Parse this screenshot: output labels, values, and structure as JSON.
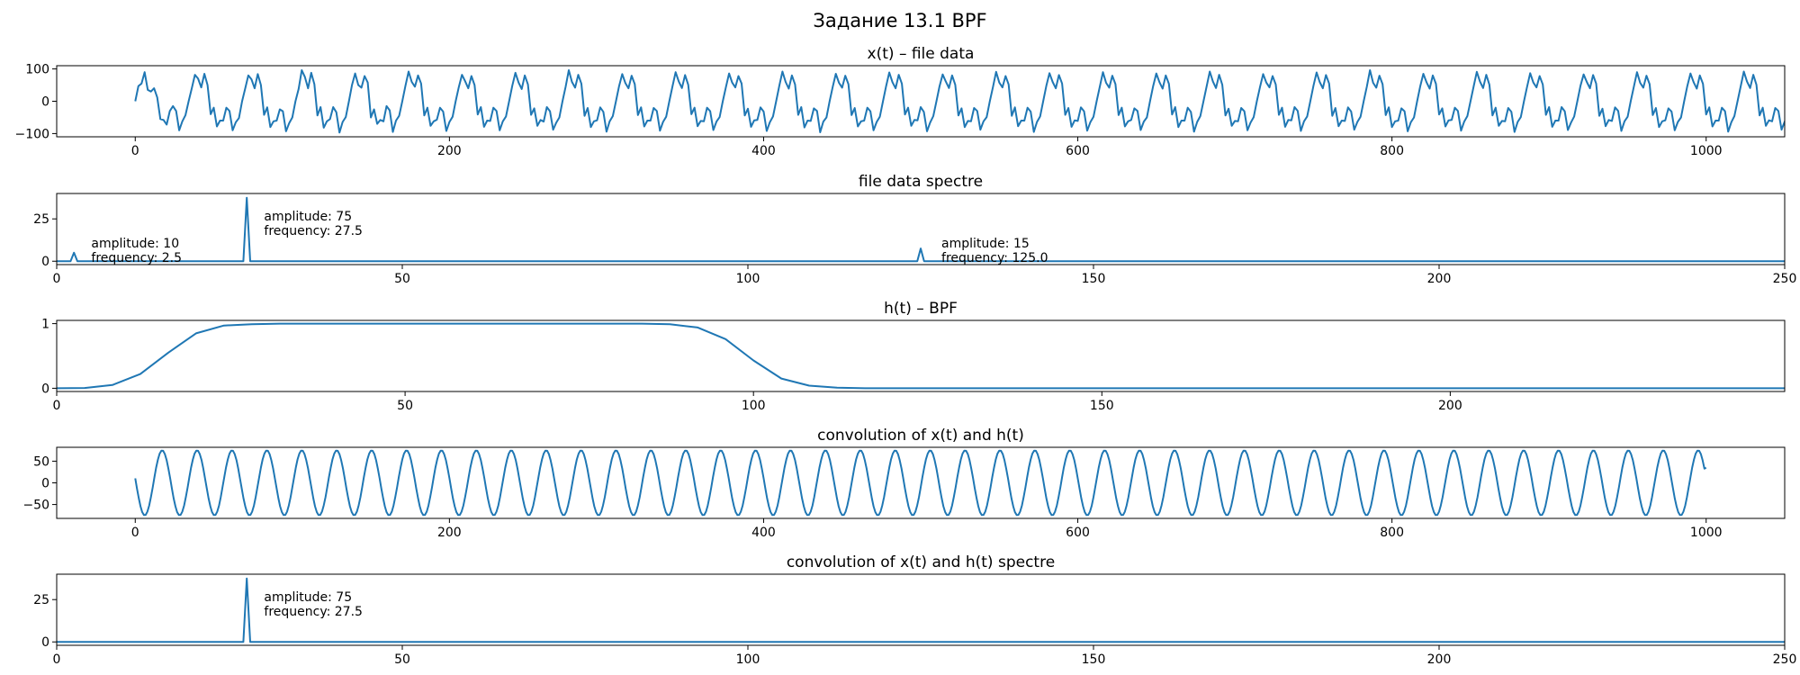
{
  "figure_title": "Задание 13.1 BPF",
  "chart_data": [
    {
      "type": "line",
      "title": "x(t) – file data",
      "xlabel": "",
      "ylabel": "",
      "xlim": [
        -50,
        1050
      ],
      "ylim": [
        -110,
        110
      ],
      "xticks": [
        0,
        200,
        400,
        600,
        800,
        1000
      ],
      "yticks": [
        -100,
        0,
        100
      ],
      "series": [
        {
          "color": "#1f77b4",
          "x_start": 0,
          "x_step": 2,
          "y": [
            0,
            47,
            55,
            90,
            35,
            30,
            40,
            12,
            -55,
            -58,
            -72,
            -30,
            -15,
            -30,
            -90,
            -62,
            -43,
            0,
            40,
            82,
            70,
            43,
            85,
            50,
            -40,
            -20,
            -78,
            -60,
            -60,
            -20,
            -30,
            -90,
            -65,
            -52,
            0,
            40,
            80,
            68,
            40,
            84,
            50,
            -42,
            -19,
            -80,
            -62,
            -60,
            -25,
            -31,
            -93,
            -68,
            -50,
            0,
            38,
            96,
            75,
            40,
            88,
            53,
            -44,
            -18,
            -82,
            -62,
            -55,
            -18,
            -34,
            -97,
            -64,
            -49,
            0,
            50,
            86,
            50,
            42,
            78,
            58,
            -50,
            -25,
            -70,
            -58,
            -62,
            -15,
            -28,
            -95,
            -60,
            -45,
            0,
            48,
            92,
            60,
            45,
            80,
            55,
            -44,
            -20,
            -76,
            -62,
            -57,
            -20,
            -32,
            -92,
            -64,
            -48,
            0,
            44,
            82,
            62,
            40,
            78,
            50,
            -41,
            -18,
            -79,
            -60,
            -61,
            -20,
            -30,
            -90,
            -62,
            -47,
            0,
            48,
            88,
            58,
            38,
            80,
            52,
            -42,
            -22,
            -76,
            -58,
            -63,
            -18,
            -31,
            -88,
            -66,
            -50,
            0,
            45,
            96,
            60,
            42,
            82,
            54,
            -45,
            -21,
            -80,
            -62,
            -59,
            -19,
            -33,
            -94,
            -62,
            -46,
            0,
            47,
            84,
            56,
            40,
            79,
            53,
            -43,
            -19,
            -78,
            -60,
            -60,
            -21,
            -30,
            -91,
            -64,
            -48,
            0,
            46,
            90,
            61,
            41,
            81,
            51,
            -40,
            -20,
            -77,
            -61,
            -62,
            -20,
            -31,
            -89,
            -63,
            -49,
            0,
            44,
            86,
            58,
            43,
            78,
            55,
            -44,
            -23,
            -79,
            -59,
            -58,
            -19,
            -32,
            -92,
            -65,
            -47,
            0,
            48,
            92,
            60,
            39,
            80,
            52,
            -42,
            -18,
            -81,
            -60,
            -61,
            -22,
            -30,
            -96,
            -63,
            -50,
            0,
            45,
            85,
            57,
            42,
            79,
            53,
            -43,
            -21,
            -78,
            -62,
            -60,
            -20,
            -31,
            -90,
            -64,
            -48,
            0,
            47,
            89,
            59,
            40,
            82,
            54,
            -41,
            -20,
            -76,
            -58,
            -59,
            -18,
            -33,
            -93,
            -66,
            -46,
            0,
            46,
            83,
            61,
            41,
            80,
            51,
            -44,
            -22,
            -80,
            -61,
            -62,
            -21,
            -30,
            -88,
            -62,
            -49,
            0,
            44,
            91,
            58,
            43,
            78,
            52,
            -45,
            -19,
            -77,
            -60,
            -60,
            -20,
            -32,
            -95,
            -64,
            -47,
            0,
            48,
            87,
            60,
            40,
            81,
            55,
            -42,
            -21,
            -79,
            -59,
            -61,
            -19,
            -31,
            -91,
            -65,
            -48,
            0,
            45,
            90,
            57,
            42,
            79,
            53,
            -43,
            -20,
            -78,
            -62,
            -58,
            -22,
            -30,
            -89,
            -63,
            -50,
            0,
            47,
            86,
            59,
            39,
            80,
            54,
            -41,
            -18,
            -80,
            -60,
            -60,
            -20,
            -33,
            -94,
            -64,
            -46,
            0,
            46,
            92,
            61,
            41,
            82,
            51,
            -44,
            -23,
            -76,
            -61,
            -62,
            -21,
            -31,
            -90,
            -66,
            -49,
            0,
            44,
            84,
            58,
            43,
            78,
            52,
            -42,
            -20,
            -79,
            -58,
            -59,
            -18,
            -30,
            -92,
            -62,
            -47,
            0,
            48,
            89,
            60,
            40,
            81,
            55,
            -45,
            -21,
            -77,
            -60,
            -61,
            -19,
            -32,
            -88,
            -64,
            -48,
            0,
            45,
            96,
            57,
            42,
            79,
            53,
            -43,
            -19,
            -80,
            -62,
            -60,
            -22,
            -31,
            -93,
            -65,
            -50,
            0,
            47,
            85,
            59,
            39,
            80,
            54,
            -41,
            -22,
            -78,
            -59,
            -58,
            -20,
            -30,
            -91,
            -63,
            -46,
            0,
            46,
            91,
            61,
            41,
            82,
            51,
            -44,
            -20,
            -76,
            -61,
            -62,
            -21,
            -33,
            -95,
            -64,
            -49,
            0,
            44,
            87,
            58,
            43,
            78,
            52,
            -42,
            -18,
            -79,
            -60,
            -60,
            -18,
            -31,
            -89,
            -66,
            -47,
            0,
            48,
            83,
            60,
            40,
            81,
            55,
            -45,
            -23,
            -77,
            -58,
            -61,
            -19,
            -30,
            -92,
            -62,
            -48,
            0,
            45,
            90,
            57,
            42,
            79,
            53,
            -43,
            -21,
            -80,
            -62,
            -59,
            -22,
            -32,
            -90,
            -64,
            -50,
            0,
            47,
            86,
            59,
            39,
            80,
            54,
            -41,
            -19,
            -78,
            -60,
            -60,
            -20,
            -31,
            -94,
            -65,
            -46,
            0,
            46,
            92,
            61,
            41,
            82,
            51,
            -44,
            -20,
            -76,
            -59,
            -62,
            -21,
            -30,
            -88,
            -63,
            -40
          ]
        }
      ]
    },
    {
      "type": "line",
      "title": "file data spectre",
      "xlim": [
        0,
        250
      ],
      "ylim": [
        -2,
        40
      ],
      "xticks": [
        0,
        50,
        100,
        150,
        200,
        250
      ],
      "yticks": [
        0,
        25
      ],
      "series": [
        {
          "color": "#1f77b4",
          "peaks": [
            {
              "frequency": 2.5,
              "height": 5
            },
            {
              "frequency": 27.5,
              "height": 37.5
            },
            {
              "frequency": 125.0,
              "height": 7.5
            }
          ],
          "baseline": 0,
          "x_end": 250
        }
      ],
      "annotations": [
        {
          "x": 5,
          "y": 8,
          "lines": [
            "amplitude: 10",
            "frequency: 2.5"
          ]
        },
        {
          "x": 30,
          "y": 24,
          "lines": [
            "amplitude: 75",
            "frequency: 27.5"
          ]
        },
        {
          "x": 128,
          "y": 8,
          "lines": [
            "amplitude: 15",
            "frequency: 125.0"
          ]
        }
      ]
    },
    {
      "type": "line",
      "title": "h(t) – BPF",
      "xlim": [
        0,
        248
      ],
      "ylim": [
        -0.05,
        1.05
      ],
      "xticks": [
        0,
        50,
        100,
        150,
        200
      ],
      "yticks": [
        0,
        1
      ],
      "series": [
        {
          "color": "#1f77b4",
          "x": [
            0,
            4,
            8,
            12,
            16,
            20,
            24,
            28,
            32,
            36,
            40,
            44,
            48,
            52,
            56,
            60,
            64,
            68,
            72,
            76,
            80,
            84,
            88,
            92,
            96,
            100,
            104,
            108,
            112,
            116,
            120,
            124,
            128,
            132,
            136,
            140,
            144,
            148,
            152,
            156,
            160,
            164,
            168,
            172,
            176,
            180,
            184,
            188,
            192,
            196,
            200,
            204,
            208,
            212,
            216,
            220,
            224,
            228,
            232,
            236,
            240,
            244,
            248
          ],
          "y": [
            0.0,
            0.005,
            0.05,
            0.22,
            0.55,
            0.85,
            0.97,
            0.99,
            1.0,
            1.0,
            1.0,
            1.0,
            1.0,
            1.0,
            1.0,
            1.0,
            1.0,
            1.0,
            1.0,
            1.0,
            1.0,
            1.0,
            0.99,
            0.94,
            0.76,
            0.43,
            0.15,
            0.04,
            0.01,
            0.0,
            0.0,
            0.0,
            0.0,
            0.0,
            0.0,
            0.0,
            0.0,
            0.0,
            0.0,
            0.0,
            0.0,
            0.0,
            0.0,
            0.0,
            0.0,
            0.0,
            0.0,
            0.0,
            0.0,
            0.0,
            0.0,
            0.0,
            0.0,
            0.0,
            0.0,
            0.0,
            0.0,
            0.0,
            0.0,
            0.0,
            0.0,
            0.0,
            0.0
          ]
        }
      ]
    },
    {
      "type": "line",
      "title": "convolution of x(t) and h(t)",
      "xlim": [
        -50,
        1050
      ],
      "ylim": [
        -82,
        82
      ],
      "xticks": [
        0,
        200,
        400,
        600,
        800,
        1000
      ],
      "yticks": [
        -50,
        0,
        50
      ],
      "series": [
        {
          "color": "#1f77b4",
          "x_start": 0,
          "x_end": 1000,
          "amplitude": 75,
          "cycles": 45,
          "phase_deg": 8,
          "end_value": 35
        }
      ]
    },
    {
      "type": "line",
      "title": "convolution of x(t) and h(t) spectre",
      "xlim": [
        0,
        250
      ],
      "ylim": [
        -2,
        40
      ],
      "xticks": [
        0,
        50,
        100,
        150,
        200,
        250
      ],
      "yticks": [
        0,
        25
      ],
      "series": [
        {
          "color": "#1f77b4",
          "peaks": [
            {
              "frequency": 27.5,
              "height": 37.5
            }
          ],
          "baseline": 0,
          "x_end": 250
        }
      ],
      "annotations": [
        {
          "x": 30,
          "y": 24,
          "lines": [
            "amplitude: 75",
            "frequency: 27.5"
          ]
        }
      ]
    }
  ]
}
